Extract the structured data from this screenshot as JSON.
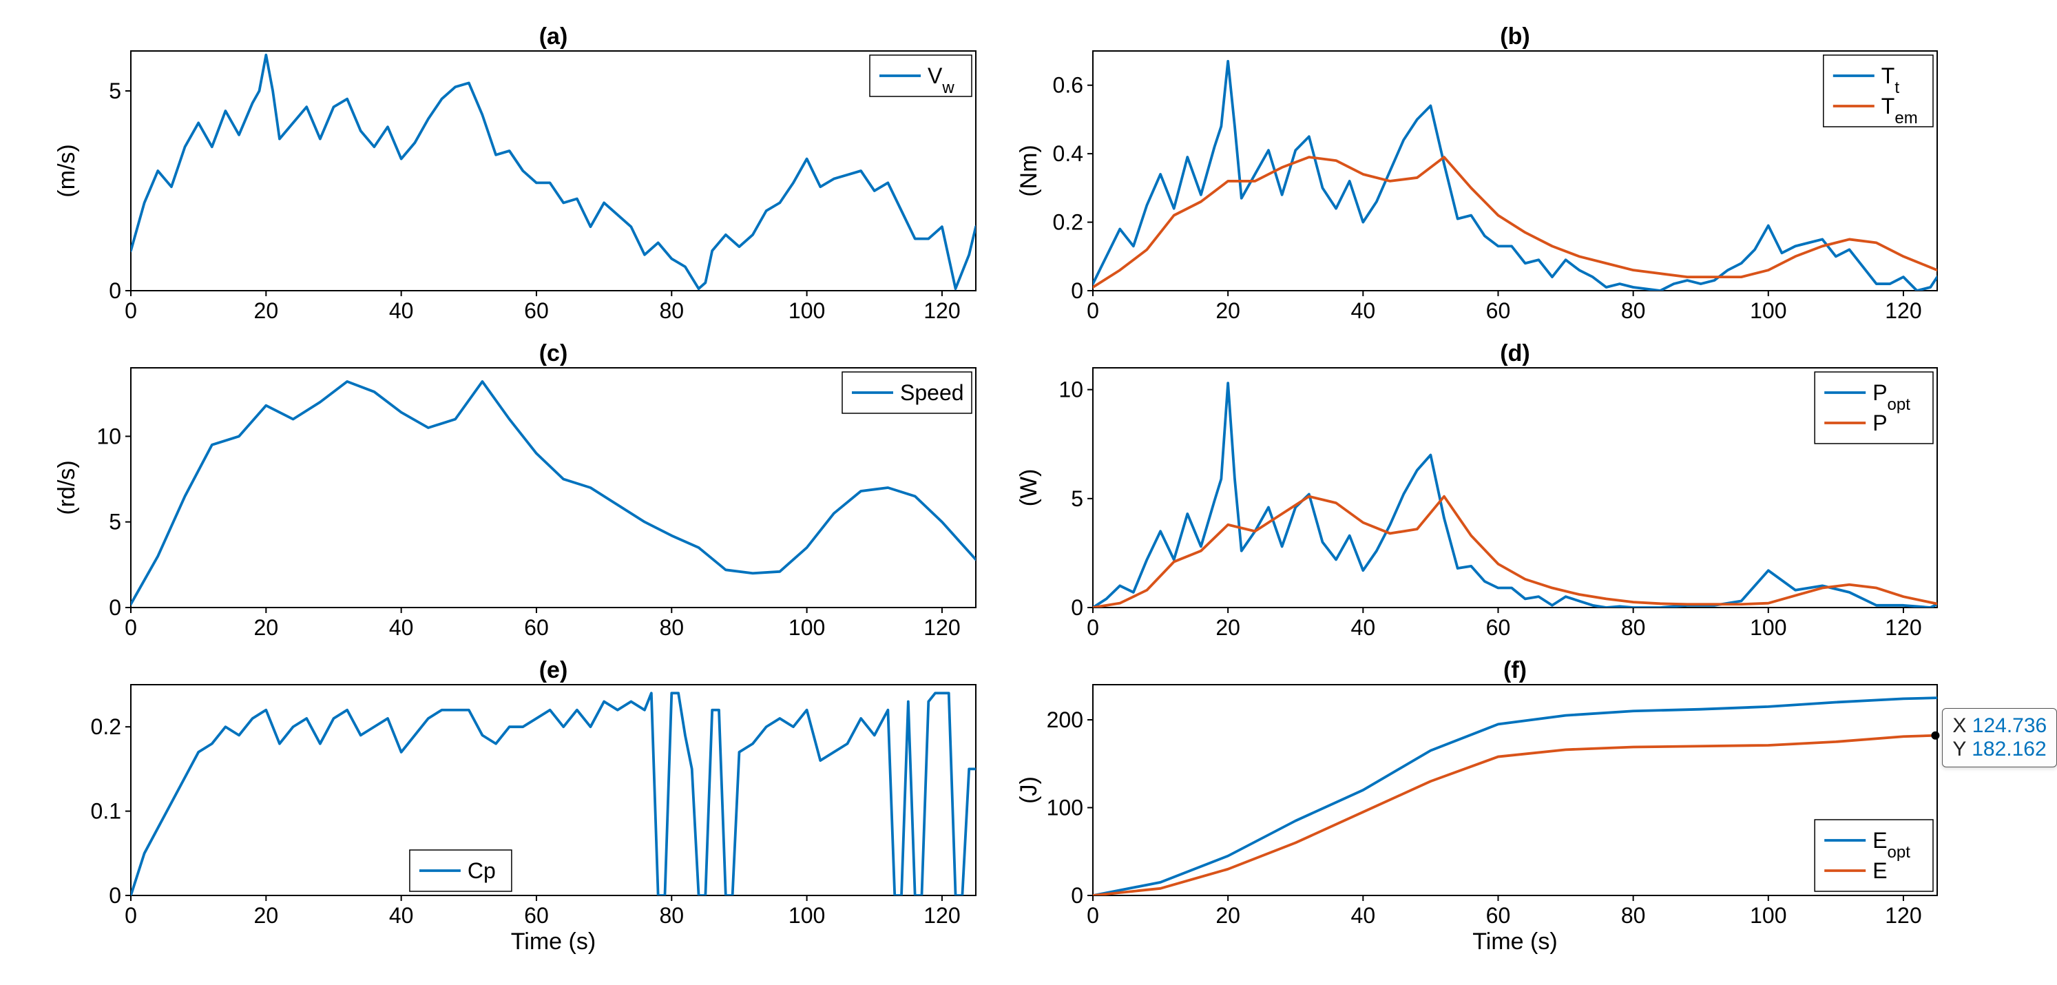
{
  "global": {
    "time_xlabel": "Time (s)",
    "colors": {
      "blue": "#0072bd",
      "orange": "#d95319",
      "axis": "#000000",
      "bg": "#ffffff",
      "tick": "#000000",
      "tooltip_border": "#555555"
    },
    "linewidth": 3.8,
    "font_family": "Arial",
    "title_fontsize": 34,
    "label_fontsize": 34,
    "tick_fontsize": 32,
    "legend_fontsize": 32
  },
  "panels": {
    "a": {
      "title": "(a)",
      "ylabel": "(m/s)",
      "xlim": [
        0,
        125
      ],
      "xticks": [
        0,
        20,
        40,
        60,
        80,
        100,
        120
      ],
      "ylim": [
        0,
        6
      ],
      "yticks": [
        0,
        5
      ],
      "ytick_labels": [
        "0",
        "5"
      ],
      "show_xlabel": false,
      "legend": {
        "pos": "upper-right",
        "items": [
          {
            "label": "V",
            "sub": "w",
            "color": "#0072bd"
          }
        ]
      },
      "series": [
        {
          "color": "#0072bd",
          "name": "Vw",
          "x": [
            0,
            2,
            4,
            6,
            8,
            10,
            12,
            14,
            16,
            18,
            19,
            20,
            21,
            22,
            24,
            26,
            28,
            30,
            32,
            34,
            36,
            38,
            40,
            42,
            44,
            46,
            48,
            50,
            52,
            54,
            56,
            58,
            60,
            62,
            64,
            66,
            68,
            70,
            72,
            74,
            76,
            78,
            80,
            82,
            84,
            85,
            86,
            88,
            90,
            92,
            94,
            96,
            98,
            100,
            102,
            104,
            106,
            108,
            110,
            112,
            114,
            116,
            118,
            120,
            122,
            124,
            125
          ],
          "y": [
            1.0,
            2.2,
            3.0,
            2.6,
            3.6,
            4.2,
            3.6,
            4.5,
            3.9,
            4.7,
            5.0,
            5.9,
            5.0,
            3.8,
            4.2,
            4.6,
            3.8,
            4.6,
            4.8,
            4.0,
            3.6,
            4.1,
            3.3,
            3.7,
            4.3,
            4.8,
            5.1,
            5.2,
            4.4,
            3.4,
            3.5,
            3.0,
            2.7,
            2.7,
            2.2,
            2.3,
            1.6,
            2.2,
            1.9,
            1.6,
            0.9,
            1.2,
            0.8,
            0.6,
            0.05,
            0.2,
            1.0,
            1.4,
            1.1,
            1.4,
            2.0,
            2.2,
            2.7,
            3.3,
            2.6,
            2.8,
            2.9,
            3.0,
            2.5,
            2.7,
            2.0,
            1.3,
            1.3,
            1.6,
            0.05,
            0.9,
            1.6
          ]
        }
      ]
    },
    "b": {
      "title": "(b)",
      "ylabel": "(Nm)",
      "xlim": [
        0,
        125
      ],
      "xticks": [
        0,
        20,
        40,
        60,
        80,
        100,
        120
      ],
      "ylim": [
        0,
        0.7
      ],
      "yticks": [
        0,
        0.2,
        0.4,
        0.6
      ],
      "ytick_labels": [
        "0",
        "0.2",
        "0.4",
        "0.6"
      ],
      "show_xlabel": false,
      "legend": {
        "pos": "upper-right",
        "items": [
          {
            "label": "T",
            "sub": "t",
            "color": "#0072bd"
          },
          {
            "label": "T",
            "sub": "em",
            "color": "#d95319"
          }
        ]
      },
      "series": [
        {
          "color": "#0072bd",
          "name": "Tt",
          "x": [
            0,
            2,
            4,
            6,
            8,
            10,
            12,
            14,
            16,
            18,
            19,
            20,
            21,
            22,
            24,
            26,
            28,
            30,
            32,
            34,
            36,
            38,
            40,
            42,
            44,
            46,
            48,
            50,
            52,
            54,
            56,
            58,
            60,
            62,
            64,
            66,
            68,
            70,
            72,
            74,
            76,
            78,
            80,
            82,
            84,
            86,
            88,
            90,
            92,
            94,
            96,
            98,
            100,
            102,
            104,
            106,
            108,
            110,
            112,
            114,
            116,
            118,
            120,
            122,
            124,
            125
          ],
          "y": [
            0.02,
            0.1,
            0.18,
            0.13,
            0.25,
            0.34,
            0.24,
            0.39,
            0.28,
            0.42,
            0.48,
            0.67,
            0.48,
            0.27,
            0.34,
            0.41,
            0.28,
            0.41,
            0.45,
            0.3,
            0.24,
            0.32,
            0.2,
            0.26,
            0.35,
            0.44,
            0.5,
            0.54,
            0.37,
            0.21,
            0.22,
            0.16,
            0.13,
            0.13,
            0.08,
            0.09,
            0.04,
            0.09,
            0.06,
            0.04,
            0.01,
            0.02,
            0.01,
            0.005,
            0.0,
            0.02,
            0.03,
            0.02,
            0.03,
            0.06,
            0.08,
            0.12,
            0.19,
            0.11,
            0.13,
            0.14,
            0.15,
            0.1,
            0.12,
            0.07,
            0.02,
            0.02,
            0.04,
            0.0,
            0.01,
            0.04
          ]
        },
        {
          "color": "#d95319",
          "name": "Tem",
          "x": [
            0,
            4,
            8,
            12,
            16,
            20,
            24,
            28,
            32,
            36,
            40,
            44,
            48,
            52,
            56,
            60,
            64,
            68,
            72,
            76,
            80,
            84,
            88,
            92,
            96,
            100,
            104,
            108,
            112,
            116,
            120,
            125
          ],
          "y": [
            0.01,
            0.06,
            0.12,
            0.22,
            0.26,
            0.32,
            0.32,
            0.36,
            0.39,
            0.38,
            0.34,
            0.32,
            0.33,
            0.39,
            0.3,
            0.22,
            0.17,
            0.13,
            0.1,
            0.08,
            0.06,
            0.05,
            0.04,
            0.04,
            0.04,
            0.06,
            0.1,
            0.13,
            0.15,
            0.14,
            0.1,
            0.06
          ]
        }
      ]
    },
    "c": {
      "title": "(c)",
      "ylabel": "(rd/s)",
      "xlim": [
        0,
        125
      ],
      "xticks": [
        0,
        20,
        40,
        60,
        80,
        100,
        120
      ],
      "ylim": [
        0,
        14
      ],
      "yticks": [
        0,
        5,
        10
      ],
      "ytick_labels": [
        "0",
        "5",
        "10"
      ],
      "show_xlabel": false,
      "legend": {
        "pos": "upper-right",
        "items": [
          {
            "label": "Speed",
            "sub": "",
            "color": "#0072bd"
          }
        ]
      },
      "series": [
        {
          "color": "#0072bd",
          "name": "Speed",
          "x": [
            0,
            4,
            8,
            12,
            16,
            20,
            24,
            28,
            32,
            36,
            40,
            44,
            48,
            52,
            56,
            60,
            64,
            68,
            72,
            76,
            80,
            84,
            88,
            92,
            96,
            100,
            104,
            108,
            112,
            116,
            120,
            125
          ],
          "y": [
            0.2,
            3.0,
            6.5,
            9.5,
            10.0,
            11.8,
            11.0,
            12.0,
            13.2,
            12.6,
            11.4,
            10.5,
            11.0,
            13.2,
            11.0,
            9.0,
            7.5,
            7.0,
            6.0,
            5.0,
            4.2,
            3.5,
            2.2,
            2.0,
            2.1,
            3.5,
            5.5,
            6.8,
            7.0,
            6.5,
            5.0,
            2.8
          ]
        }
      ]
    },
    "d": {
      "title": "(d)",
      "ylabel": "(W)",
      "xlim": [
        0,
        125
      ],
      "xticks": [
        0,
        20,
        40,
        60,
        80,
        100,
        120
      ],
      "ylim": [
        0,
        11
      ],
      "yticks": [
        0,
        5,
        10
      ],
      "ytick_labels": [
        "0",
        "5",
        "10"
      ],
      "show_xlabel": false,
      "legend": {
        "pos": "upper-right",
        "items": [
          {
            "label": "P",
            "sub": "opt",
            "color": "#0072bd"
          },
          {
            "label": "P",
            "sub": "",
            "color": "#d95319"
          }
        ]
      },
      "series": [
        {
          "color": "#0072bd",
          "name": "Popt",
          "x": [
            0,
            2,
            4,
            6,
            8,
            10,
            12,
            14,
            16,
            18,
            19,
            20,
            21,
            22,
            24,
            26,
            28,
            30,
            32,
            34,
            36,
            38,
            40,
            42,
            44,
            46,
            48,
            50,
            52,
            54,
            56,
            58,
            60,
            62,
            64,
            66,
            68,
            70,
            72,
            74,
            76,
            78,
            80,
            84,
            88,
            92,
            96,
            100,
            104,
            108,
            112,
            116,
            120,
            124,
            125
          ],
          "y": [
            0.0,
            0.4,
            1.0,
            0.7,
            2.2,
            3.5,
            2.2,
            4.3,
            2.8,
            4.9,
            5.9,
            10.3,
            5.9,
            2.6,
            3.5,
            4.6,
            2.8,
            4.6,
            5.2,
            3.0,
            2.2,
            3.3,
            1.7,
            2.6,
            3.8,
            5.2,
            6.3,
            7.0,
            4.1,
            1.8,
            1.9,
            1.2,
            0.9,
            0.9,
            0.4,
            0.5,
            0.1,
            0.5,
            0.3,
            0.1,
            0.0,
            0.05,
            0.0,
            0.0,
            0.1,
            0.1,
            0.3,
            1.7,
            0.8,
            1.0,
            0.7,
            0.1,
            0.1,
            0.0,
            0.15
          ]
        },
        {
          "color": "#d95319",
          "name": "P",
          "x": [
            0,
            4,
            8,
            12,
            16,
            20,
            24,
            28,
            32,
            36,
            40,
            44,
            48,
            52,
            56,
            60,
            64,
            68,
            72,
            76,
            80,
            84,
            88,
            92,
            96,
            100,
            104,
            108,
            112,
            116,
            120,
            125
          ],
          "y": [
            0.0,
            0.2,
            0.8,
            2.1,
            2.6,
            3.8,
            3.5,
            4.3,
            5.1,
            4.8,
            3.9,
            3.4,
            3.6,
            5.1,
            3.3,
            2.0,
            1.3,
            0.9,
            0.6,
            0.4,
            0.25,
            0.18,
            0.15,
            0.15,
            0.15,
            0.2,
            0.55,
            0.9,
            1.05,
            0.9,
            0.5,
            0.17
          ]
        }
      ]
    },
    "e": {
      "title": "(e)",
      "ylabel": "",
      "xlim": [
        0,
        125
      ],
      "xticks": [
        0,
        20,
        40,
        60,
        80,
        100,
        120
      ],
      "ylim": [
        0,
        0.25
      ],
      "yticks": [
        0,
        0.1,
        0.2
      ],
      "ytick_labels": [
        "0",
        "0.1",
        "0.2"
      ],
      "show_xlabel": true,
      "legend": {
        "pos": "lower-center",
        "items": [
          {
            "label": "Cp",
            "sub": "",
            "color": "#0072bd"
          }
        ]
      },
      "series": [
        {
          "color": "#0072bd",
          "name": "Cp",
          "x": [
            0,
            2,
            4,
            6,
            8,
            10,
            12,
            14,
            16,
            18,
            20,
            22,
            24,
            26,
            28,
            30,
            32,
            34,
            36,
            38,
            40,
            42,
            44,
            46,
            48,
            50,
            52,
            54,
            56,
            58,
            60,
            62,
            64,
            66,
            68,
            70,
            72,
            74,
            76,
            77,
            78,
            79,
            80,
            81,
            82,
            83,
            84,
            85,
            86,
            87,
            88,
            89,
            90,
            92,
            94,
            96,
            98,
            100,
            102,
            104,
            106,
            108,
            110,
            112,
            113,
            114,
            115,
            116,
            117,
            118,
            119,
            120,
            121,
            122,
            123,
            124,
            125
          ],
          "y": [
            0.0,
            0.05,
            0.08,
            0.11,
            0.14,
            0.17,
            0.18,
            0.2,
            0.19,
            0.21,
            0.22,
            0.18,
            0.2,
            0.21,
            0.18,
            0.21,
            0.22,
            0.19,
            0.2,
            0.21,
            0.17,
            0.19,
            0.21,
            0.22,
            0.22,
            0.22,
            0.19,
            0.18,
            0.2,
            0.2,
            0.21,
            0.22,
            0.2,
            0.22,
            0.2,
            0.23,
            0.22,
            0.23,
            0.22,
            0.24,
            0.0,
            0.0,
            0.24,
            0.24,
            0.19,
            0.15,
            0.0,
            0.0,
            0.22,
            0.22,
            0.0,
            0.0,
            0.17,
            0.18,
            0.2,
            0.21,
            0.2,
            0.22,
            0.16,
            0.17,
            0.18,
            0.21,
            0.19,
            0.22,
            0.0,
            0.0,
            0.23,
            0.0,
            0.0,
            0.23,
            0.24,
            0.24,
            0.24,
            0.0,
            0.0,
            0.15,
            0.15
          ]
        }
      ]
    },
    "f": {
      "title": "(f)",
      "ylabel": "(J)",
      "xlim": [
        0,
        125
      ],
      "xticks": [
        0,
        20,
        40,
        60,
        80,
        100,
        120
      ],
      "ylim": [
        0,
        240
      ],
      "yticks": [
        0,
        100,
        200
      ],
      "ytick_labels": [
        "0",
        "100",
        "200"
      ],
      "show_xlabel": true,
      "legend": {
        "pos": "lower-right",
        "items": [
          {
            "label": "E",
            "sub": "opt",
            "color": "#0072bd"
          },
          {
            "label": "E",
            "sub": "",
            "color": "#d95319"
          }
        ]
      },
      "series": [
        {
          "color": "#0072bd",
          "name": "Eopt",
          "x": [
            0,
            10,
            20,
            30,
            40,
            50,
            60,
            70,
            80,
            90,
            100,
            110,
            120,
            125
          ],
          "y": [
            0,
            15,
            45,
            85,
            120,
            165,
            195,
            205,
            210,
            212,
            215,
            220,
            224,
            225
          ]
        },
        {
          "color": "#d95319",
          "name": "E",
          "x": [
            0,
            10,
            20,
            30,
            40,
            50,
            60,
            70,
            80,
            90,
            100,
            110,
            120,
            124.736
          ],
          "y": [
            0,
            8,
            30,
            60,
            95,
            130,
            158,
            166,
            169,
            170,
            171,
            175,
            181,
            182.162
          ]
        }
      ],
      "tooltip": {
        "x_label": "X",
        "x_value": "124.736",
        "y_label": "Y",
        "y_value": "182.162",
        "point_x": 124.736,
        "point_y": 182.162
      }
    }
  }
}
